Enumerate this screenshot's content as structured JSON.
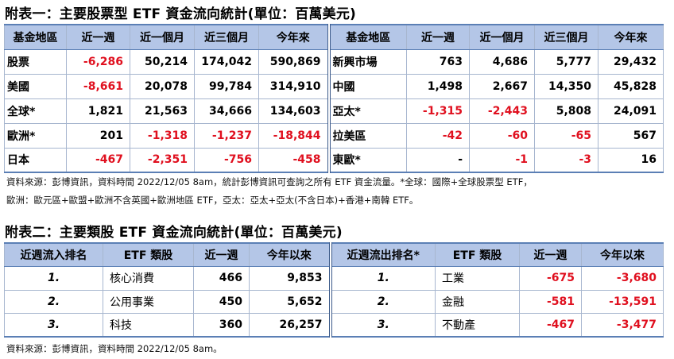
{
  "table1": {
    "title": "附表一：主要股票型 ETF 資金流向統計(單位：百萬美元)",
    "headers_left": [
      "基金地區",
      "近一週",
      "近一個月",
      "近三個月",
      "今年來"
    ],
    "headers_right": [
      "基金地區",
      "近一週",
      "近一個月",
      "近三個月",
      "今年來"
    ],
    "rows": [
      {
        "l": [
          "股票",
          "-6,286",
          "50,214",
          "174,042",
          "590,869"
        ],
        "r": [
          "新興市場",
          "763",
          "4,686",
          "5,777",
          "29,432"
        ]
      },
      {
        "l": [
          "美國",
          "-8,661",
          "20,078",
          "99,784",
          "314,910"
        ],
        "r": [
          "中國",
          "1,498",
          "2,667",
          "14,350",
          "45,828"
        ]
      },
      {
        "l": [
          "全球*",
          "1,821",
          "21,563",
          "34,666",
          "134,603"
        ],
        "r": [
          "亞太*",
          "-1,315",
          "-2,443",
          "5,808",
          "24,091"
        ]
      },
      {
        "l": [
          "歐洲*",
          "201",
          "-1,318",
          "-1,237",
          "-18,844"
        ],
        "r": [
          "拉美區",
          "-42",
          "-60",
          "-65",
          "567"
        ]
      },
      {
        "l": [
          "日本",
          "-467",
          "-2,351",
          "-756",
          "-458"
        ],
        "r": [
          "東歐*",
          "-",
          "-1",
          "-3",
          "16"
        ]
      }
    ],
    "note_line1": "資料來源：彭博資訊，資料時間 2022/12/05 8am，統計彭博資訊可查詢之所有 ETF 資金流量。*全球：國際+全球股票型 ETF，",
    "note_line2": "歐洲：歐元區+歐盟+歐洲不含英國+歐洲地區 ETF，亞太：亞太+亞太(不含日本)+香港+南韓 ETF。"
  },
  "table2": {
    "title": "附表二：主要類股 ETF 資金流向統計(單位：百萬美元)",
    "headers_left": [
      "近週流入排名",
      "ETF 類股",
      "近一週",
      "今年以來"
    ],
    "headers_right": [
      "近週流出排名*",
      "ETF 類股",
      "近一週",
      "今年以來"
    ],
    "rows": [
      {
        "l": [
          "1.",
          "核心消費",
          "466",
          "9,853"
        ],
        "r": [
          "1.",
          "工業",
          "-675",
          "-3,680"
        ]
      },
      {
        "l": [
          "2.",
          "公用事業",
          "450",
          "5,652"
        ],
        "r": [
          "2.",
          "金融",
          "-581",
          "-13,591"
        ]
      },
      {
        "l": [
          "3.",
          "科技",
          "360",
          "26,257"
        ],
        "r": [
          "3.",
          "不動產",
          "-467",
          "-3,477"
        ]
      }
    ],
    "note": "資料來源：彭博資訊，資料時間 2022/12/05 8am。"
  }
}
